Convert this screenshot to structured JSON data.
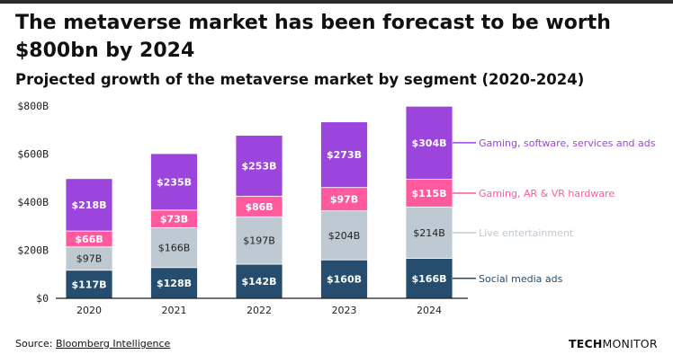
{
  "header": {
    "title": "The metaverse market has been forecast to be worth $800bn by 2024",
    "subtitle": "Projected growth of the metaverse market by segment (2020-2024)"
  },
  "footer": {
    "source_prefix": "Source: ",
    "source_link": "Bloomberg Intelligence",
    "brand_part1": "TECH",
    "brand_part2": "MONITOR"
  },
  "chart_data": {
    "type": "bar",
    "stacked": true,
    "title": "Projected growth of the metaverse market by segment (2020-2024)",
    "xlabel": "",
    "ylabel": "",
    "ylim": [
      0,
      800
    ],
    "yticks": [
      0,
      200,
      400,
      600,
      800
    ],
    "ytick_labels": [
      "$0",
      "$200B",
      "$400B",
      "$600B",
      "$800B"
    ],
    "grid": "none",
    "legend_placement": "right",
    "categories": [
      "2020",
      "2021",
      "2022",
      "2023",
      "2024"
    ],
    "series": [
      {
        "name": "Social media ads",
        "color": "#264d6e",
        "label_color": "#ffffff",
        "label_bold": true,
        "values": [
          117,
          128,
          142,
          160,
          166
        ],
        "labels": [
          "$117B",
          "$128B",
          "$142B",
          "$160B",
          "$166B"
        ]
      },
      {
        "name": "Live entertainment",
        "color": "#bfc9d2",
        "label_color": "#222222",
        "label_bold": false,
        "values": [
          97,
          166,
          197,
          204,
          214
        ],
        "labels": [
          "$97B",
          "$166B",
          "$197B",
          "$204B",
          "$214B"
        ]
      },
      {
        "name": "Gaming, AR & VR hardware",
        "color": "#ff5a9e",
        "label_color": "#ffffff",
        "label_bold": true,
        "values": [
          66,
          73,
          86,
          97,
          115
        ],
        "labels": [
          "$66B",
          "$73B",
          "$86B",
          "$97B",
          "$115B"
        ]
      },
      {
        "name": "Gaming, software, services and ads",
        "color": "#9c45dc",
        "label_color": "#ffffff",
        "label_bold": true,
        "values": [
          218,
          235,
          253,
          273,
          304
        ],
        "labels": [
          "$218B",
          "$235B",
          "$253B",
          "$273B",
          "$304B"
        ]
      }
    ]
  }
}
